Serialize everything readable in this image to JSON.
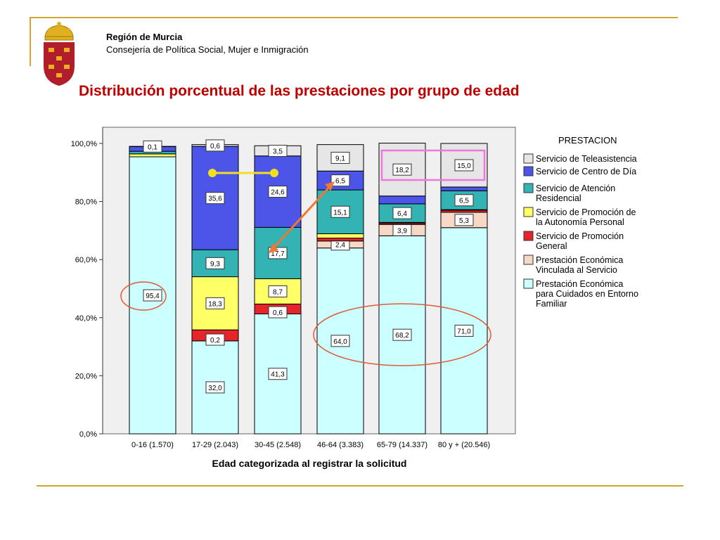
{
  "header": {
    "region": "Región de Murcia",
    "department": "Consejería de Política Social, Mujer e Inmigración"
  },
  "slide": {
    "title": "Distribución porcentual de las prestaciones por grupo de edad"
  },
  "colors": {
    "accent_rule": "#d4a534",
    "title_red": "#c00000"
  },
  "chart_data": {
    "type": "bar",
    "stacked": true,
    "title": "",
    "xlabel": "Edad categorizada al registrar la solicitud",
    "ylabel": "",
    "ylim": [
      0,
      100
    ],
    "yticks": [
      "0,0%",
      "20,0%",
      "40,0%",
      "60,0%",
      "80,0%",
      "100,0%"
    ],
    "grid": false,
    "legend_title": "PRESTACION",
    "legend_position": "right",
    "categories": [
      "0-16 (1.570)",
      "17-29 (2.043)",
      "30-45 (2.548)",
      "46-64 (3.383)",
      "65-79 (14.337)",
      "80 y + (20.546)"
    ],
    "series": [
      {
        "name": "Prestación Económica para Cuidados en Entorno Familiar",
        "color": "#ccffff",
        "values": [
          95.4,
          32.0,
          41.3,
          64.0,
          68.2,
          71.0
        ],
        "labels": [
          "95,4",
          "32,0",
          "41,3",
          "64,0",
          "68,2",
          "71,0"
        ]
      },
      {
        "name": "Prestación Económica Vinculada al Servicio",
        "color": "#f5d9c6",
        "values": [
          0.0,
          0.0,
          0.0,
          2.4,
          3.9,
          5.3
        ],
        "labels": [
          "",
          "",
          "",
          "2,4",
          "3,9",
          "5,3"
        ]
      },
      {
        "name": "Servicio de Promoción General",
        "color": "#e8242b",
        "values": [
          0.0,
          3.8,
          3.4,
          1.0,
          0.5,
          0.7
        ],
        "labels": [
          "",
          "",
          "",
          "",
          "",
          ""
        ]
      },
      {
        "name": "Servicio de Promoción de la Autonomía Personal",
        "color": "#ffff66",
        "values": [
          1.0,
          18.3,
          8.7,
          1.5,
          0.2,
          0.2
        ],
        "labels": [
          "",
          "18,3",
          "8,7",
          "",
          "",
          ""
        ]
      },
      {
        "name": "Servicio de Atención Residencial",
        "color": "#33b3b3",
        "values": [
          0.9,
          9.3,
          17.7,
          15.1,
          6.4,
          6.5
        ],
        "labels": [
          "",
          "9,3",
          "17,7",
          "15,1",
          "6,4",
          "6,5"
        ]
      },
      {
        "name": "Servicio de Centro de Día",
        "color": "#4d55e8",
        "values": [
          1.6,
          35.6,
          24.6,
          6.5,
          2.7,
          1.3
        ],
        "labels": [
          "",
          "35,6",
          "24,6",
          "6,5",
          "",
          ""
        ]
      },
      {
        "name": "Servicio de Teleasistencia",
        "color": "#e6e6e6",
        "values": [
          0.1,
          0.6,
          3.5,
          9.1,
          18.2,
          15.0
        ],
        "labels": [
          "0,1",
          "0,6",
          "3,5",
          "9,1",
          "18,2",
          "15,0"
        ]
      }
    ],
    "extra_labels": [
      {
        "category": "17-29 (2.043)",
        "text": "0,2"
      },
      {
        "category": "30-45 (2.548)",
        "text": "0,6"
      }
    ]
  }
}
